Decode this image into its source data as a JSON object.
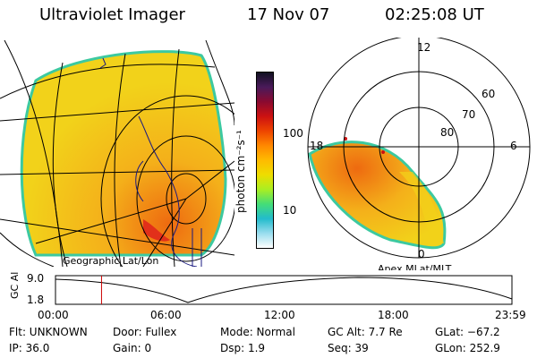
{
  "header": {
    "title": "Ultraviolet Imager",
    "date": "17 Nov 07",
    "time": "02:25:08 UT"
  },
  "colorbar": {
    "unit_label": "photon cm⁻²s⁻¹",
    "ticks": [
      "100",
      "10"
    ],
    "ticks_values": [
      100,
      10
    ],
    "scale": "log",
    "colors": [
      "#111122",
      "#4a1a5a",
      "#8a0a30",
      "#cc1111",
      "#ee4400",
      "#ff8800",
      "#ffbb00",
      "#eedd00",
      "#aaee22",
      "#44dd77",
      "#22bbcc",
      "#99ddee",
      "#ffffff"
    ]
  },
  "left_panel": {
    "label": "Geographic Lat/Lon",
    "colors": {
      "fill": "#f2d21a",
      "fill_hot": "#f09a10",
      "aurora": "#e2301a",
      "edge": "#3cc9a0"
    }
  },
  "right_panel": {
    "label": "Apex MLat/MLT",
    "mlt_labels": {
      "top": "12",
      "left": "18",
      "right": "6",
      "bottom": "0"
    },
    "lat_labels": [
      "60",
      "70",
      "80"
    ],
    "colors": {
      "fill": "#f4b01a",
      "fill_hot": "#ee6a10",
      "edge": "#3cc9a0"
    }
  },
  "altitude_plot": {
    "ylabel": "GC Alt",
    "yticks": [
      "9.0",
      "1.8"
    ],
    "xticks": [
      "00:00",
      "06:00",
      "12:00",
      "18:00",
      "23:59"
    ],
    "marker_time": "02:25:08",
    "marker_color": "#cc0000"
  },
  "status": {
    "flt": "Flt: UNKNOWN",
    "ip": "IP: 36.0",
    "door": "Door:  Fullex",
    "gain": "Gain:   0",
    "mode": "Mode:  Normal",
    "dsp": "Dsp:     1.9",
    "gc_alt": "GC Alt:  7.7 Re",
    "seq": "Seq:  39",
    "glat": "GLat:  −67.2",
    "glon": "GLon:  252.9"
  }
}
